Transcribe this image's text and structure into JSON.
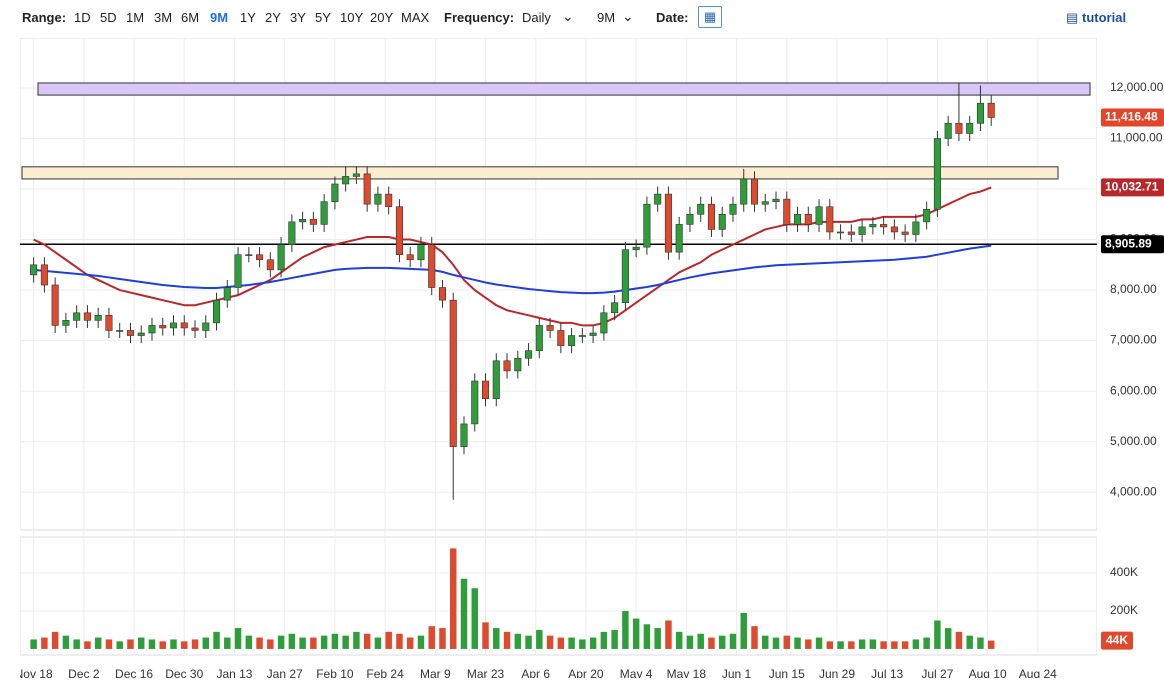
{
  "toolbar": {
    "range_label": "Range:",
    "ranges": [
      "1D",
      "5D",
      "1M",
      "3M",
      "6M",
      "9M",
      "1Y",
      "2Y",
      "3Y",
      "5Y",
      "10Y",
      "20Y",
      "MAX"
    ],
    "active_range": 5,
    "frequency_label": "Frequency:",
    "frequency": "Daily",
    "period": "9M",
    "date_label": "Date:",
    "tutorial": "tutorial"
  },
  "chart_data": {
    "type": "candlestick",
    "up_color": "#2e9e3a",
    "down_color": "#dd4a2e",
    "x": [
      0,
      3,
      6,
      9,
      12,
      15,
      18,
      21,
      24,
      27,
      30,
      33,
      36,
      39,
      42,
      45,
      48,
      51,
      54,
      57,
      60,
      63,
      66,
      69,
      72,
      75,
      78,
      81,
      84,
      87,
      90,
      93,
      96,
      99,
      102,
      105,
      108,
      111,
      114,
      117,
      120,
      123,
      126,
      129,
      132,
      135,
      138,
      141,
      144,
      147,
      150,
      153,
      156,
      159,
      162,
      165,
      168,
      171,
      174,
      177,
      180,
      183,
      186,
      189,
      192,
      195,
      198,
      201,
      204,
      207,
      210,
      213,
      216,
      219,
      222,
      225,
      228,
      231,
      234,
      237,
      240,
      243,
      246,
      249,
      252,
      255,
      258,
      261,
      264,
      267
    ],
    "open": [
      8300,
      8500,
      8100,
      7300,
      7400,
      7550,
      7400,
      7500,
      7200,
      7200,
      7100,
      7150,
      7300,
      7250,
      7350,
      7250,
      7200,
      7350,
      7800,
      8050,
      8700,
      8700,
      8600,
      8400,
      8900,
      9350,
      9400,
      9300,
      9750,
      10100,
      10250,
      10300,
      9700,
      9900,
      9650,
      8700,
      8600,
      8900,
      8050,
      7800,
      4900,
      5350,
      6200,
      5850,
      6600,
      6400,
      6650,
      6800,
      7300,
      7200,
      6900,
      7100,
      7100,
      7150,
      7550,
      7750,
      8800,
      8850,
      9700,
      9900,
      8750,
      9300,
      9500,
      9700,
      9200,
      9500,
      9700,
      10200,
      9700,
      9750,
      9800,
      9300,
      9500,
      9300,
      9650,
      9150,
      9150,
      9100,
      9250,
      9300,
      9250,
      9150,
      9100,
      9350,
      9600,
      11000,
      11300,
      11100,
      11300,
      11700
    ],
    "high": [
      8650,
      8650,
      8250,
      7550,
      7700,
      7700,
      7650,
      7650,
      7350,
      7350,
      7300,
      7450,
      7450,
      7500,
      7500,
      7400,
      7500,
      7950,
      8200,
      8850,
      8850,
      8850,
      8750,
      9050,
      9500,
      9550,
      9550,
      9900,
      10250,
      10450,
      10450,
      10450,
      10050,
      10050,
      9800,
      8850,
      9050,
      9050,
      8200,
      7950,
      5500,
      6350,
      6350,
      6750,
      6750,
      6800,
      6950,
      7450,
      7450,
      7350,
      7250,
      7250,
      7300,
      7700,
      7900,
      8950,
      9000,
      9850,
      10050,
      10050,
      9450,
      9650,
      9850,
      9850,
      9650,
      9850,
      10400,
      10350,
      9900,
      9950,
      9950,
      9650,
      9650,
      9800,
      9800,
      9300,
      9300,
      9400,
      9450,
      9450,
      9400,
      9300,
      9500,
      9750,
      11150,
      11450,
      12100,
      11450,
      12050,
      11850
    ],
    "low": [
      8150,
      7950,
      7150,
      7150,
      7250,
      7250,
      7250,
      7050,
      7050,
      6950,
      6950,
      7000,
      7100,
      7100,
      7100,
      7050,
      7050,
      7200,
      7650,
      7900,
      8550,
      8450,
      8250,
      8250,
      8750,
      9200,
      9150,
      9150,
      9600,
      9950,
      10100,
      9550,
      9550,
      9500,
      8550,
      8450,
      8450,
      7900,
      7650,
      3850,
      4750,
      5200,
      5700,
      5700,
      6250,
      6250,
      6500,
      6650,
      7050,
      6750,
      6750,
      6950,
      6950,
      7000,
      7400,
      7600,
      8650,
      8700,
      9550,
      8600,
      8600,
      9150,
      9350,
      9050,
      9050,
      9350,
      9550,
      9550,
      9550,
      9600,
      9150,
      9150,
      9150,
      9150,
      9000,
      9000,
      8950,
      8950,
      9100,
      9100,
      9000,
      8950,
      8950,
      9200,
      9450,
      10850,
      10950,
      10950,
      11150,
      11250
    ],
    "close": [
      8500,
      8100,
      7300,
      7400,
      7550,
      7400,
      7500,
      7200,
      7200,
      7100,
      7150,
      7300,
      7250,
      7350,
      7250,
      7200,
      7350,
      7800,
      8050,
      8700,
      8700,
      8600,
      8400,
      8900,
      9350,
      9400,
      9300,
      9750,
      10100,
      10250,
      10300,
      9700,
      9900,
      9650,
      8700,
      8600,
      8900,
      8050,
      7800,
      4900,
      5350,
      6200,
      5850,
      6600,
      6400,
      6650,
      6800,
      7300,
      7200,
      6900,
      7100,
      7100,
      7150,
      7550,
      7750,
      8800,
      8850,
      9700,
      9900,
      8750,
      9300,
      9500,
      9700,
      9200,
      9500,
      9700,
      10200,
      9700,
      9750,
      9800,
      9300,
      9500,
      9300,
      9650,
      9150,
      9150,
      9100,
      9250,
      9300,
      9250,
      9150,
      9100,
      9350,
      9600,
      11000,
      11300,
      11100,
      11300,
      11700,
      11416.48
    ],
    "lines": [
      {
        "color": "#b8282a",
        "values": [
          9000,
          8900,
          8750,
          8600,
          8450,
          8300,
          8200,
          8100,
          8000,
          7950,
          7900,
          7850,
          7800,
          7750,
          7700,
          7700,
          7750,
          7800,
          7850,
          7900,
          8000,
          8100,
          8200,
          8350,
          8500,
          8650,
          8750,
          8850,
          8900,
          8950,
          9000,
          9050,
          9050,
          9050,
          9000,
          9000,
          8950,
          8900,
          8750,
          8500,
          8200,
          8000,
          7850,
          7700,
          7600,
          7550,
          7500,
          7450,
          7400,
          7350,
          7350,
          7300,
          7300,
          7350,
          7450,
          7600,
          7750,
          7900,
          8050,
          8200,
          8350,
          8450,
          8550,
          8700,
          8800,
          8900,
          9000,
          9100,
          9200,
          9250,
          9300,
          9300,
          9300,
          9350,
          9350,
          9350,
          9350,
          9400,
          9400,
          9450,
          9450,
          9450,
          9450,
          9500,
          9600,
          9700,
          9800,
          9900,
          9950,
          10032.71
        ]
      },
      {
        "color": "#1f3fd6",
        "values": [
          8400,
          8380,
          8360,
          8340,
          8320,
          8300,
          8280,
          8250,
          8220,
          8190,
          8160,
          8130,
          8100,
          8080,
          8060,
          8050,
          8040,
          8040,
          8060,
          8080,
          8100,
          8130,
          8160,
          8200,
          8240,
          8280,
          8320,
          8360,
          8400,
          8420,
          8430,
          8440,
          8440,
          8440,
          8430,
          8420,
          8410,
          8400,
          8360,
          8300,
          8250,
          8200,
          8150,
          8110,
          8080,
          8050,
          8020,
          8000,
          7980,
          7960,
          7950,
          7940,
          7940,
          7950,
          7970,
          8000,
          8030,
          8060,
          8100,
          8150,
          8200,
          8250,
          8290,
          8330,
          8360,
          8390,
          8420,
          8450,
          8470,
          8490,
          8500,
          8510,
          8520,
          8530,
          8540,
          8550,
          8560,
          8570,
          8580,
          8590,
          8600,
          8620,
          8640,
          8660,
          8700,
          8740,
          8780,
          8820,
          8850,
          8880
        ]
      }
    ],
    "zones": [
      {
        "from": 11860,
        "to": 12100,
        "color": "#d9c8f7"
      },
      {
        "from": 10200,
        "to": 10440,
        "color": "#fbeed0"
      }
    ],
    "hline": 8905.89,
    "price_tags": [
      {
        "value": 11416.48,
        "label": "11,416.48",
        "color": "#e3452b"
      },
      {
        "value": 10032.71,
        "label": "10,032.71",
        "color": "#b8282a"
      },
      {
        "value": 8905.89,
        "label": "8,905.89",
        "color": "#000000"
      }
    ],
    "xlim": [
      -3.8,
      296.5
    ],
    "xticks": [
      {
        "value": 0,
        "label": "Nov 18"
      },
      {
        "value": 14,
        "label": "Dec 2"
      },
      {
        "value": 28,
        "label": "Dec 16"
      },
      {
        "value": 42,
        "label": "Dec 30"
      },
      {
        "value": 56,
        "label": "Jan 13"
      },
      {
        "value": 70,
        "label": "Jan 27"
      },
      {
        "value": 84,
        "label": "Feb 10"
      },
      {
        "value": 98,
        "label": "Feb 24"
      },
      {
        "value": 112,
        "label": "Mar 9"
      },
      {
        "value": 126,
        "label": "Mar 23"
      },
      {
        "value": 140,
        "label": "Apr 6"
      },
      {
        "value": 154,
        "label": "Apr 20"
      },
      {
        "value": 168,
        "label": "May 4"
      },
      {
        "value": 182,
        "label": "May 18"
      },
      {
        "value": 196,
        "label": "Jun 1"
      },
      {
        "value": 210,
        "label": "Jun 15"
      },
      {
        "value": 224,
        "label": "Jun 29"
      },
      {
        "value": 238,
        "label": "Jul 13"
      },
      {
        "value": 252,
        "label": "Jul 27"
      },
      {
        "value": 266,
        "label": "Aug 10"
      },
      {
        "value": 280,
        "label": "Aug 24"
      }
    ],
    "ylim": [
      3250,
      12990
    ],
    "yticks": [
      {
        "value": 4000,
        "label": "4,000.00"
      },
      {
        "value": 5000,
        "label": "5,000.00"
      },
      {
        "value": 6000,
        "label": "6,000.00"
      },
      {
        "value": 7000,
        "label": "7,000.00"
      },
      {
        "value": 8000,
        "label": "8,000.00"
      },
      {
        "value": 9000,
        "label": "9,000.00"
      },
      {
        "value": 10000,
        "label": "10,000.00"
      },
      {
        "value": 11000,
        "label": "11,000.00"
      },
      {
        "value": 12000,
        "label": "12,000.00"
      }
    ],
    "volume": {
      "values": [
        50000,
        60000,
        90000,
        70000,
        50000,
        40000,
        60000,
        50000,
        40000,
        50000,
        60000,
        50000,
        40000,
        50000,
        40000,
        50000,
        60000,
        90000,
        60000,
        110000,
        70000,
        60000,
        50000,
        70000,
        80000,
        60000,
        60000,
        70000,
        80000,
        70000,
        90000,
        80000,
        60000,
        90000,
        80000,
        60000,
        70000,
        120000,
        110000,
        530000,
        370000,
        320000,
        140000,
        110000,
        90000,
        80000,
        70000,
        100000,
        70000,
        60000,
        60000,
        50000,
        60000,
        90000,
        100000,
        200000,
        160000,
        130000,
        110000,
        150000,
        90000,
        70000,
        80000,
        60000,
        70000,
        80000,
        190000,
        120000,
        70000,
        60000,
        70000,
        60000,
        50000,
        60000,
        40000,
        40000,
        40000,
        50000,
        50000,
        40000,
        40000,
        40000,
        50000,
        60000,
        150000,
        110000,
        90000,
        70000,
        60000,
        44000
      ],
      "last_label": "44K",
      "ylim": [
        -32000,
        590000
      ],
      "yticks": [
        {
          "value": 200000,
          "label": "200K"
        },
        {
          "value": 400000,
          "label": "400K"
        }
      ]
    }
  }
}
